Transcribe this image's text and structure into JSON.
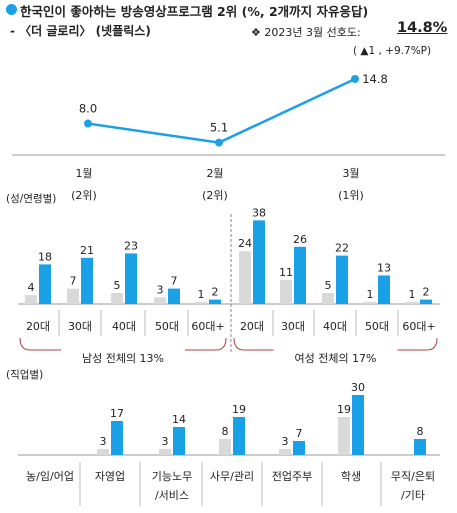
{
  "title": "한국인이 좋아하는 방송영상프로그램 2위 (%, 2개까지 자유응답)",
  "subtitle": "- 〈더 글로리〉 (넷플릭스)",
  "period_label": "❖ 2023년 3월 선호도:",
  "preference_value": "14.8%",
  "change_label": "( ▲1 , +9.7%P)",
  "colors": {
    "accent": "#1aa0e6",
    "gray": "#d9d9d9",
    "text": "#222222",
    "axis": "#999999"
  },
  "chart_data": [
    {
      "type": "line",
      "x": [
        "1월",
        "2월",
        "3월"
      ],
      "x_sub": [
        "(2위)",
        "(2위)",
        "(1위)"
      ],
      "values": [
        8.0,
        5.1,
        14.8
      ],
      "value_labels": [
        "8.0",
        "5.1",
        "14.8"
      ],
      "ylim": [
        0,
        18
      ]
    },
    {
      "type": "bar",
      "section_label": "(성/연령별)",
      "categories": [
        "20대",
        "30대",
        "40대",
        "50대",
        "60대+",
        "20대",
        "30대",
        "40대",
        "50대",
        "60대+"
      ],
      "series": [
        {
          "values": [
            4,
            7,
            5,
            3,
            1,
            24,
            11,
            5,
            1,
            1
          ]
        },
        {
          "values": [
            18,
            21,
            23,
            7,
            2,
            38,
            26,
            22,
            13,
            2
          ]
        }
      ],
      "ylim": [
        0,
        40
      ],
      "groups": [
        {
          "label": "남성 전체의 13%",
          "start": 0,
          "end": 4
        },
        {
          "label": "여성 전체의 17%",
          "start": 5,
          "end": 9
        }
      ]
    },
    {
      "type": "bar",
      "section_label": "(직업별)",
      "categories": [
        [
          "농/임/어업"
        ],
        [
          "자영업"
        ],
        [
          "기능노무",
          "/서비스"
        ],
        [
          "사무/관리"
        ],
        [
          "전업주부"
        ],
        [
          "학생"
        ],
        [
          "무직/은퇴",
          "/기타"
        ]
      ],
      "series": [
        {
          "values": [
            0,
            3,
            3,
            8,
            3,
            19,
            0
          ],
          "labels": [
            "",
            "3",
            "3",
            "8",
            "3",
            "19",
            ""
          ]
        },
        {
          "values": [
            0,
            17,
            14,
            19,
            7,
            30,
            8
          ],
          "labels": [
            "",
            "17",
            "14",
            "19",
            "7",
            "30",
            "8"
          ]
        }
      ],
      "ylim": [
        0,
        40
      ]
    }
  ]
}
